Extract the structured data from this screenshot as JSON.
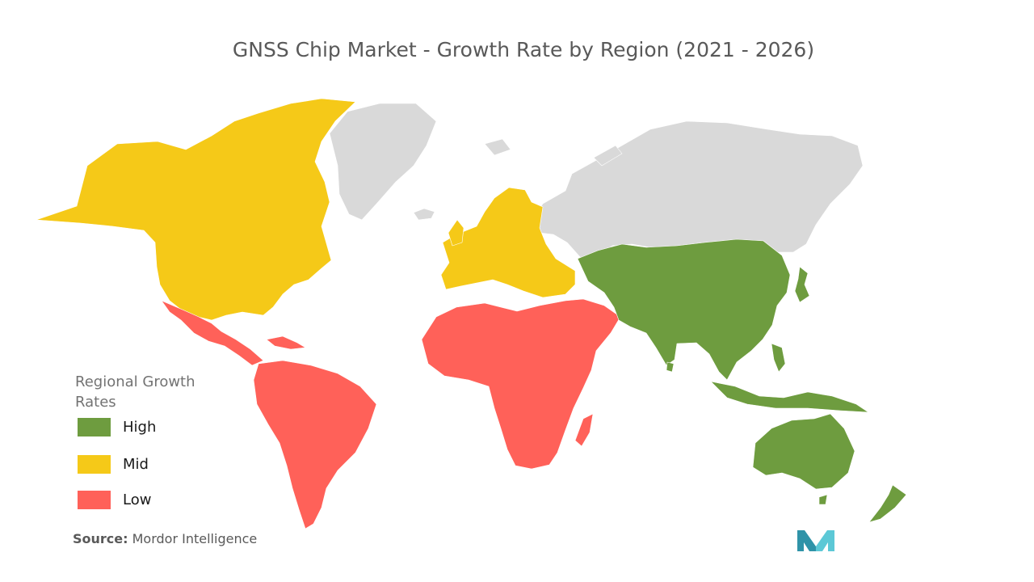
{
  "title": "GNSS Chip Market - Growth Rate by Region (2021 - 2026)",
  "legend": {
    "title": "Regional Growth Rates",
    "items": [
      {
        "label": "High",
        "color": "#6e9c3f"
      },
      {
        "label": "Mid",
        "color": "#f5c918"
      },
      {
        "label": "Low",
        "color": "#ff6159"
      }
    ]
  },
  "regions": [
    {
      "name": "North America",
      "rate": "Mid"
    },
    {
      "name": "Europe",
      "rate": "Mid"
    },
    {
      "name": "Asia-Pacific",
      "rate": "High"
    },
    {
      "name": "Latin America",
      "rate": "Low"
    },
    {
      "name": "Middle East and Africa",
      "rate": "Low"
    }
  ],
  "colors": {
    "unclassified": "#d9d9d9",
    "title": "#595959"
  },
  "source": {
    "label": "Source:",
    "value": "Mordor Intelligence"
  },
  "logo": {
    "icon": "mordor-intelligence-logo",
    "colors": [
      "#2f93a8",
      "#5cc8d6"
    ]
  }
}
